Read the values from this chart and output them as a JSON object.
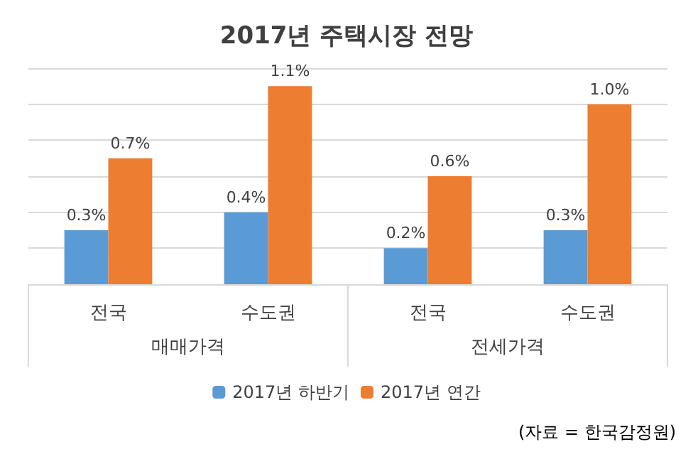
{
  "chart_data": {
    "type": "bar",
    "title": "2017년 주택시장 전망",
    "categories": [
      "전국",
      "수도권",
      "전국",
      "수도권"
    ],
    "series": [
      {
        "name": "2017년 하반기",
        "color": "#5b9bd5",
        "values": [
          0.3,
          0.4,
          0.2,
          0.3
        ],
        "value_labels": [
          "0.3%",
          "0.4%",
          "0.2%",
          "0.3%"
        ]
      },
      {
        "name": "2017년 연간",
        "color": "#ed7d31",
        "values": [
          0.7,
          1.1,
          0.6,
          1.0
        ],
        "value_labels": [
          "0.7%",
          "1.1%",
          "0.6%",
          "1.0%"
        ]
      }
    ],
    "tick_labels": "x",
    "grid": "y",
    "legend": "bottom",
    "annotations": [
      "매매가격",
      "전세가격",
      "(자료 = 한국감정원)"
    ]
  }
}
